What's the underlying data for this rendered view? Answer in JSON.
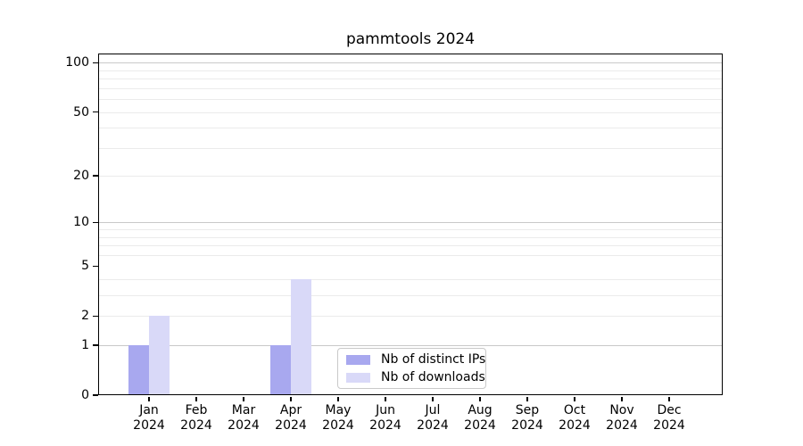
{
  "title": "pammtools 2024",
  "chart_data": {
    "type": "bar",
    "title": "pammtools 2024",
    "categories": [
      "Jan 2024",
      "Feb 2024",
      "Mar 2024",
      "Apr 2024",
      "May 2024",
      "Jun 2024",
      "Jul 2024",
      "Aug 2024",
      "Sep 2024",
      "Oct 2024",
      "Nov 2024",
      "Dec 2024"
    ],
    "x_tick_months": [
      "Jan",
      "Feb",
      "Mar",
      "Apr",
      "May",
      "Jun",
      "Jul",
      "Aug",
      "Sep",
      "Oct",
      "Nov",
      "Dec"
    ],
    "x_tick_year": "2024",
    "series": [
      {
        "name": "Nb of distinct IPs",
        "color": "#a8a8ef",
        "values": [
          1,
          0,
          0,
          1,
          0,
          0,
          0,
          0,
          0,
          0,
          0,
          0
        ]
      },
      {
        "name": "Nb of downloads",
        "color": "#d9d9f8",
        "values": [
          2,
          0,
          0,
          4,
          0,
          0,
          0,
          0,
          0,
          0,
          0,
          0
        ]
      }
    ],
    "y_scale": "log1p",
    "y_axis": {
      "tick_values": [
        0,
        1,
        2,
        5,
        10,
        20,
        50,
        100
      ],
      "tick_labels": [
        "0",
        "1",
        "2",
        "5",
        "10",
        "20",
        "50",
        "100"
      ],
      "major_gridlines": [
        1,
        10,
        100
      ],
      "minor_gridlines": [
        2,
        3,
        4,
        6,
        7,
        8,
        9,
        20,
        30,
        40,
        50,
        60,
        70,
        80,
        90
      ],
      "max": 114
    },
    "legend": {
      "position": "bottom-center",
      "items": [
        "Nb of distinct IPs",
        "Nb of downloads"
      ]
    },
    "grid": "horizontal",
    "colors": {
      "major_grid": "#c9c9c9",
      "minor_grid": "#ebebeb",
      "spine": "#000000",
      "background": "#ffffff"
    }
  }
}
